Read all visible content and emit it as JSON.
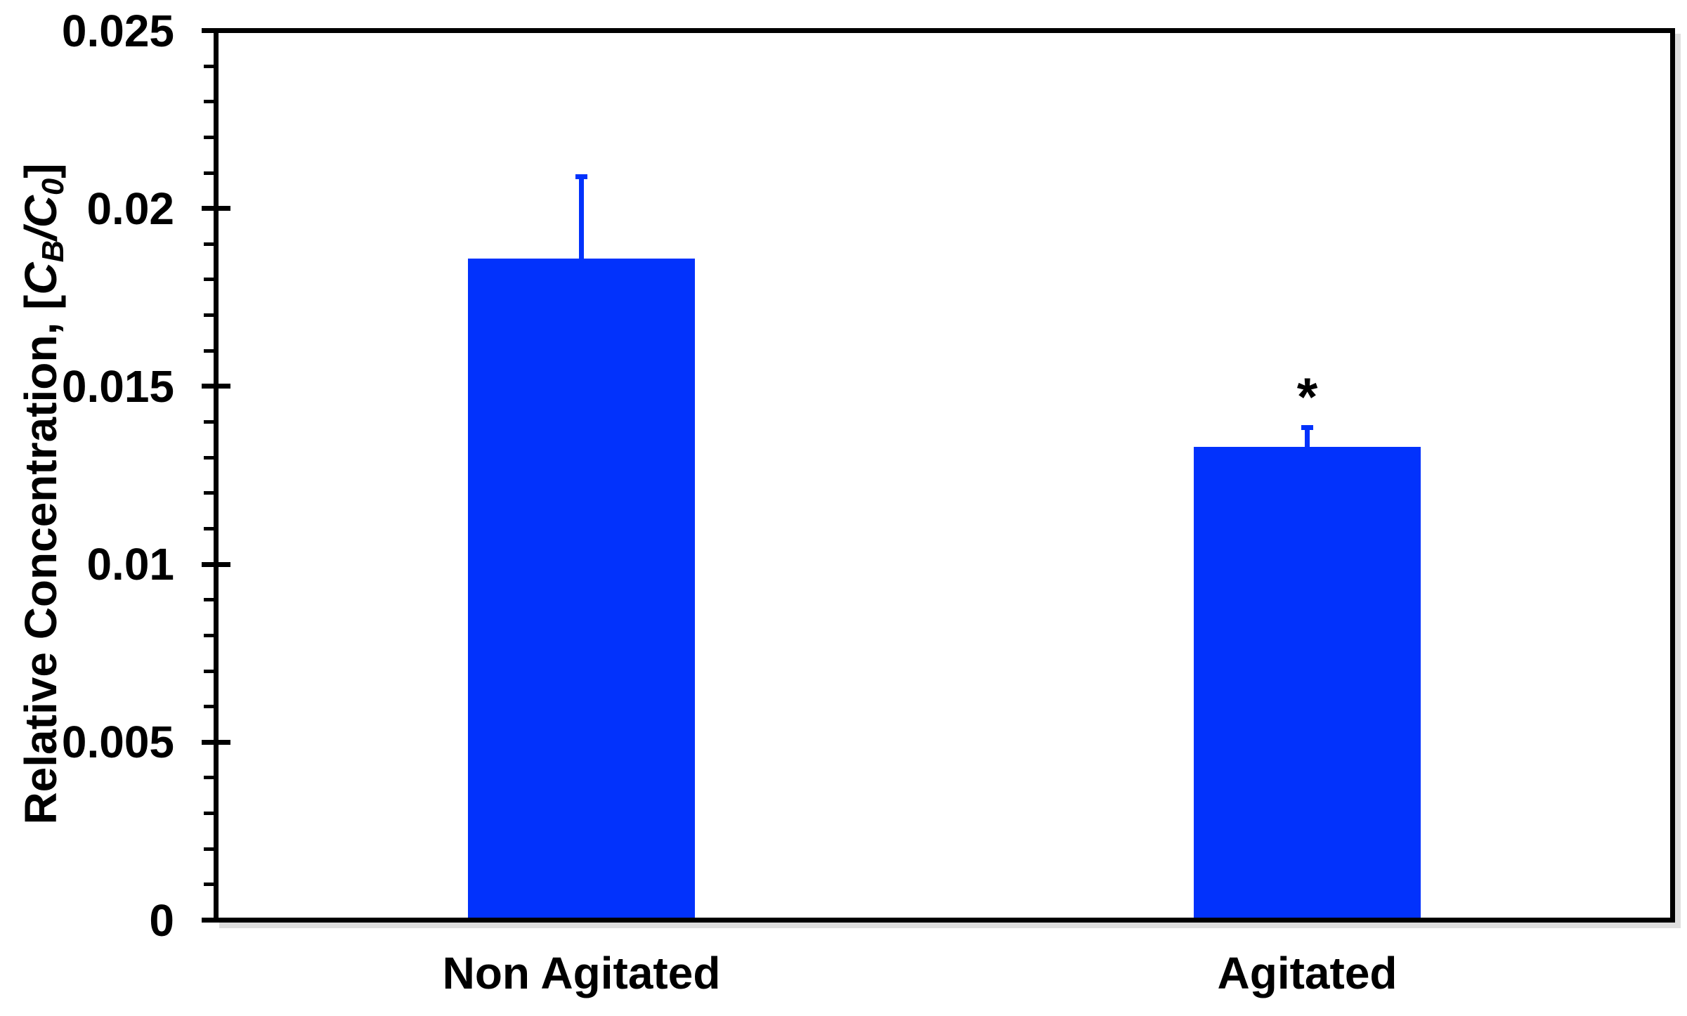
{
  "chart_data": {
    "type": "bar",
    "title": "",
    "categories": [
      "Non Agitated",
      "Agitated"
    ],
    "values": [
      0.0186,
      0.0133
    ],
    "errors_plus": [
      0.0023,
      0.00055
    ],
    "significance": [
      "",
      "*"
    ],
    "ylabel": {
      "prefix": "Relative Concentration, [",
      "numerator": "C",
      "numerator_sub": "B",
      "divider": "/",
      "denominator": "C",
      "denominator_sub": "0",
      "suffix": "]"
    },
    "xlabel": "",
    "ylim": [
      0,
      0.025
    ],
    "ytick_major_step": 0.005,
    "ytick_minor_step": 0.001,
    "ytick_labels": [
      "0",
      "0.005",
      "0.01",
      "0.015",
      "0.02",
      "0.025"
    ],
    "grid": false,
    "legend": null,
    "bar_color": "#0232FC",
    "error_bar_color": "#0232FC",
    "frame_color": "#000000",
    "shadow_color": "#DEDEDE",
    "text_color": "#000000",
    "background": "#FFFFFF"
  }
}
